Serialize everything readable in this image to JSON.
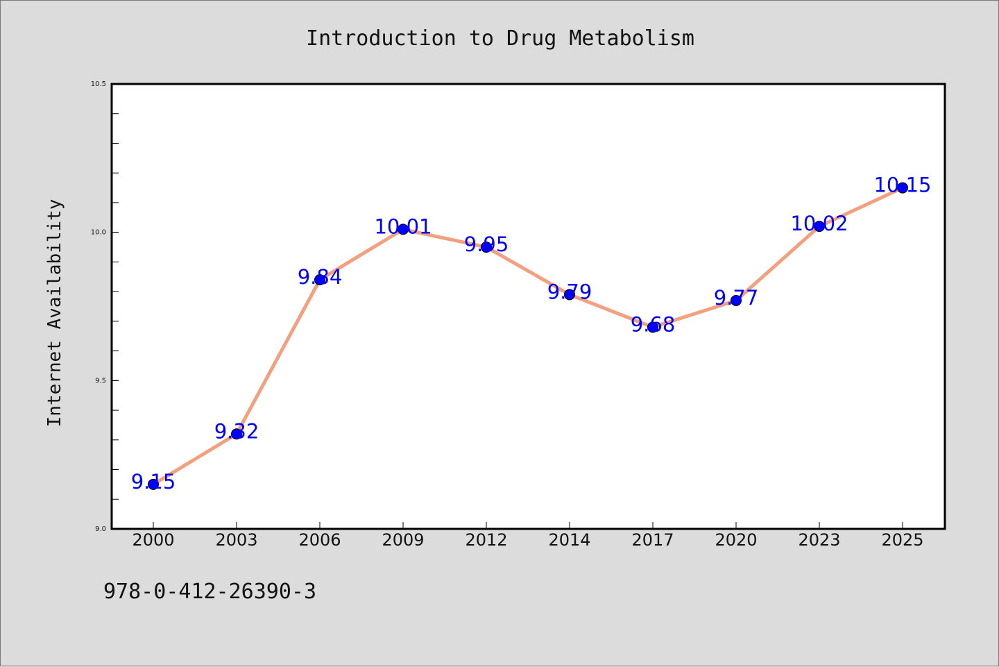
{
  "chart_data": {
    "type": "line",
    "title": "Introduction to Drug Metabolism",
    "xlabel": "",
    "ylabel": "Internet Availability",
    "categories": [
      "2000",
      "2003",
      "2006",
      "2009",
      "2012",
      "2014",
      "2017",
      "2020",
      "2023",
      "2025"
    ],
    "series": [
      {
        "values": [
          9.15,
          9.32,
          9.84,
          10.01,
          9.95,
          9.79,
          9.68,
          9.77,
          10.02,
          10.15
        ]
      }
    ],
    "data_labels": [
      "9.15",
      "9.32",
      "9.84",
      "10.01",
      "9.95",
      "9.79",
      "9.68",
      "9.77",
      "10.02",
      "10.15"
    ],
    "ylim": [
      9.0,
      10.5
    ],
    "y_ticks": [
      "9.0",
      "9.5",
      "10.0",
      "10.5"
    ],
    "grid": false,
    "legend": "none",
    "colors": {
      "line": "#f4a07f",
      "marker": "#0000ff",
      "label": "#0000ff",
      "background": "#dcdcdc",
      "plot_bg": "#ffffff"
    }
  },
  "footer": {
    "isbn": "978-0-412-26390-3"
  }
}
